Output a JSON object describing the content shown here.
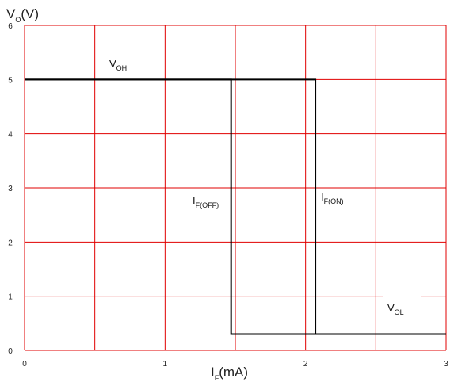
{
  "chart_data": {
    "type": "line",
    "xlabel": {
      "main": "I",
      "sub": "F",
      "rest": "(mA)"
    },
    "ylabel": {
      "main": "V",
      "sub": "O",
      "rest": "(V)"
    },
    "xlim": [
      0,
      3
    ],
    "ylim": [
      0,
      6
    ],
    "x_ticks": [
      "0",
      "1",
      "2",
      "3"
    ],
    "y_ticks": [
      "0",
      "1",
      "2",
      "3",
      "4",
      "5",
      "6"
    ],
    "grid": true,
    "grid_color": "#e00000",
    "line_color": "#000000",
    "series": [
      {
        "x": [
          0,
          1.47,
          1.47,
          3
        ],
        "y": [
          5,
          5,
          0.3,
          0.3
        ]
      },
      {
        "x": [
          0,
          2.07,
          2.07,
          3
        ],
        "y": [
          5,
          5,
          0.3,
          0.3
        ]
      }
    ],
    "annotations": [
      {
        "main": "V",
        "sub": "OH"
      },
      {
        "main": "I",
        "sub": "F(OFF)"
      },
      {
        "main": "I",
        "sub": "F(ON)"
      },
      {
        "main": "V",
        "sub": "OL"
      }
    ]
  }
}
